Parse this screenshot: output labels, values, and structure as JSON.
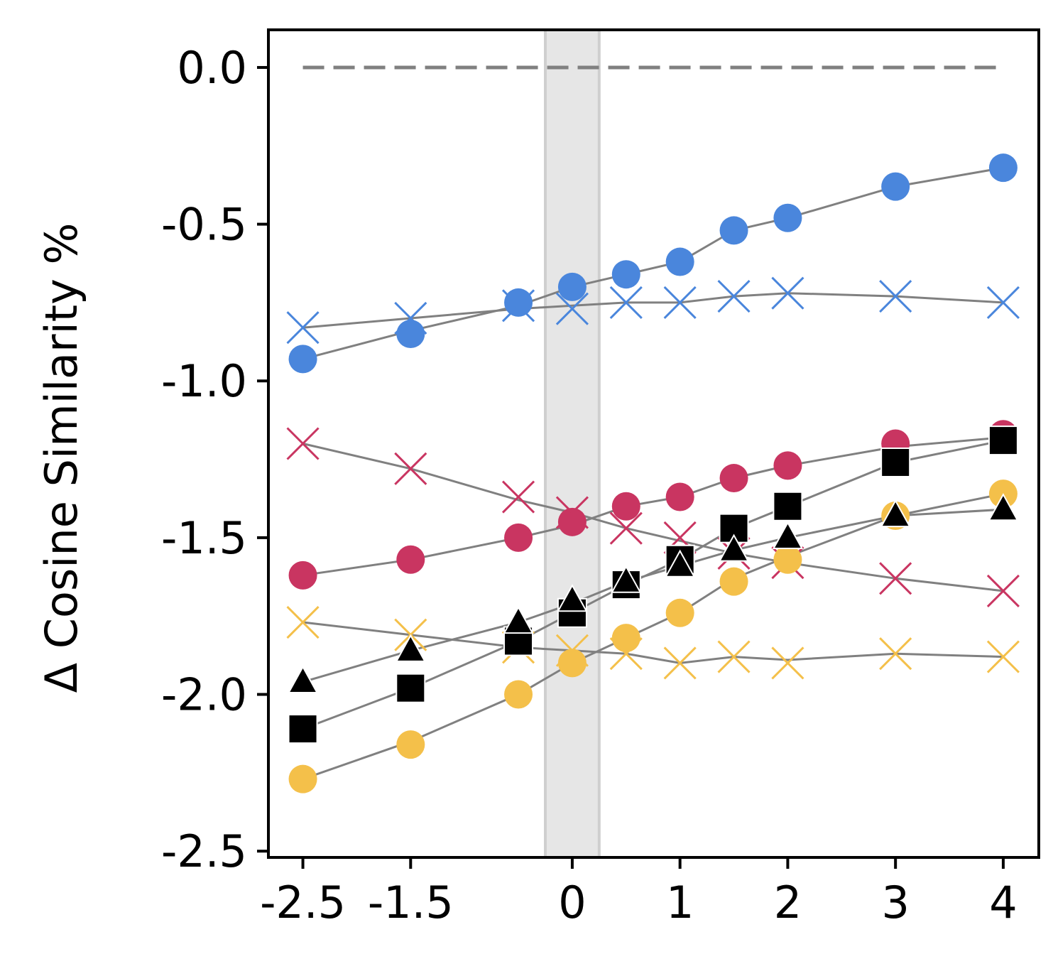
{
  "chart_data": {
    "type": "scatter",
    "title": "",
    "xlabel": "",
    "ylabel": "Δ Cosine Similarity %",
    "x": [
      -2.5,
      -1.5,
      -0.5,
      0,
      0.5,
      1,
      1.5,
      2,
      3,
      4
    ],
    "xticks": [
      -2.5,
      -1.5,
      0,
      1,
      2,
      3,
      4
    ],
    "xtick_labels": [
      "-2.5",
      "-1.5",
      "0",
      "1",
      "2",
      "3",
      "4"
    ],
    "yticks": [
      0.0,
      -0.5,
      -1.0,
      -1.5,
      -2.0,
      -2.5
    ],
    "ytick_labels": [
      "0.0",
      "-0.5",
      "-1.0",
      "-1.5",
      "-2.0",
      "-2.5"
    ],
    "xlim": [
      -2.82,
      4.33
    ],
    "ylim": [
      -2.52,
      0.12
    ],
    "reference_line": {
      "y": 0.0,
      "style": "dashed",
      "color": "#808080"
    },
    "highlight_band": {
      "x_from": -0.25,
      "x_to": 0.25,
      "color": "#e6e6e6"
    },
    "series": [
      {
        "name": "blue circle",
        "marker": "circle",
        "color": "#4a86dc",
        "markers": [
          -0.93,
          -0.85,
          -0.75,
          -0.7,
          -0.66,
          -0.62,
          -0.52,
          -0.48,
          -0.38,
          -0.32
        ],
        "line": [
          -0.93,
          -0.84,
          -0.76,
          -0.7,
          -0.66,
          -0.62,
          -0.52,
          -0.48,
          -0.38,
          -0.32
        ]
      },
      {
        "name": "blue cross",
        "marker": "x",
        "color": "#4a86dc",
        "markers": [
          -0.83,
          -0.8,
          -0.76,
          -0.77,
          -0.75,
          -0.75,
          -0.73,
          -0.72,
          -0.73,
          -0.75
        ],
        "line": [
          -0.83,
          -0.8,
          -0.77,
          -0.76,
          -0.75,
          -0.75,
          -0.73,
          -0.72,
          -0.73,
          -0.75
        ]
      },
      {
        "name": "red circle",
        "marker": "circle",
        "color": "#c93561",
        "markers": [
          -1.62,
          -1.57,
          -1.5,
          -1.45,
          -1.4,
          -1.37,
          -1.31,
          -1.27,
          -1.2,
          -1.17
        ],
        "line": [
          -1.62,
          -1.57,
          -1.5,
          -1.46,
          -1.4,
          -1.37,
          -1.31,
          -1.27,
          -1.21,
          -1.18
        ]
      },
      {
        "name": "red cross",
        "marker": "x",
        "color": "#c93561",
        "markers": [
          -1.2,
          -1.28,
          -1.37,
          -1.42,
          -1.47,
          -1.5,
          -1.55,
          -1.58,
          -1.63,
          -1.67
        ],
        "line": [
          -1.2,
          -1.28,
          -1.38,
          -1.42,
          -1.47,
          -1.51,
          -1.55,
          -1.58,
          -1.63,
          -1.67
        ]
      },
      {
        "name": "yellow circle",
        "marker": "circle",
        "color": "#f4c04a",
        "markers": [
          -2.27,
          -2.16,
          -2.0,
          -1.9,
          -1.82,
          -1.74,
          -1.64,
          -1.57,
          -1.43,
          -1.36
        ],
        "line": [
          -2.27,
          -2.15,
          -2.0,
          -1.9,
          -1.82,
          -1.74,
          -1.63,
          -1.56,
          -1.43,
          -1.36
        ]
      },
      {
        "name": "yellow cross",
        "marker": "x",
        "color": "#f4c04a",
        "markers": [
          -1.77,
          -1.81,
          -1.85,
          -1.86,
          -1.87,
          -1.9,
          -1.88,
          -1.9,
          -1.87,
          -1.88
        ],
        "line": [
          -1.77,
          -1.81,
          -1.85,
          -1.86,
          -1.87,
          -1.9,
          -1.88,
          -1.89,
          -1.87,
          -1.88
        ]
      },
      {
        "name": "black square",
        "marker": "square",
        "color": "#000000",
        "markers": [
          -2.11,
          -1.98,
          -1.83,
          -1.74,
          -1.65,
          -1.57,
          -1.47,
          -1.4,
          -1.26,
          -1.19
        ],
        "line": [
          -2.11,
          -1.98,
          -1.83,
          -1.74,
          -1.65,
          -1.57,
          -1.47,
          -1.4,
          -1.26,
          -1.19
        ]
      },
      {
        "name": "black triangle",
        "marker": "triangle",
        "color": "#000000",
        "markers": [
          -1.96,
          -1.86,
          -1.77,
          -1.7,
          -1.64,
          -1.59,
          -1.54,
          -1.5,
          -1.43,
          -1.41
        ],
        "line": [
          -1.96,
          -1.86,
          -1.77,
          -1.71,
          -1.64,
          -1.59,
          -1.54,
          -1.5,
          -1.43,
          -1.41
        ]
      }
    ]
  }
}
